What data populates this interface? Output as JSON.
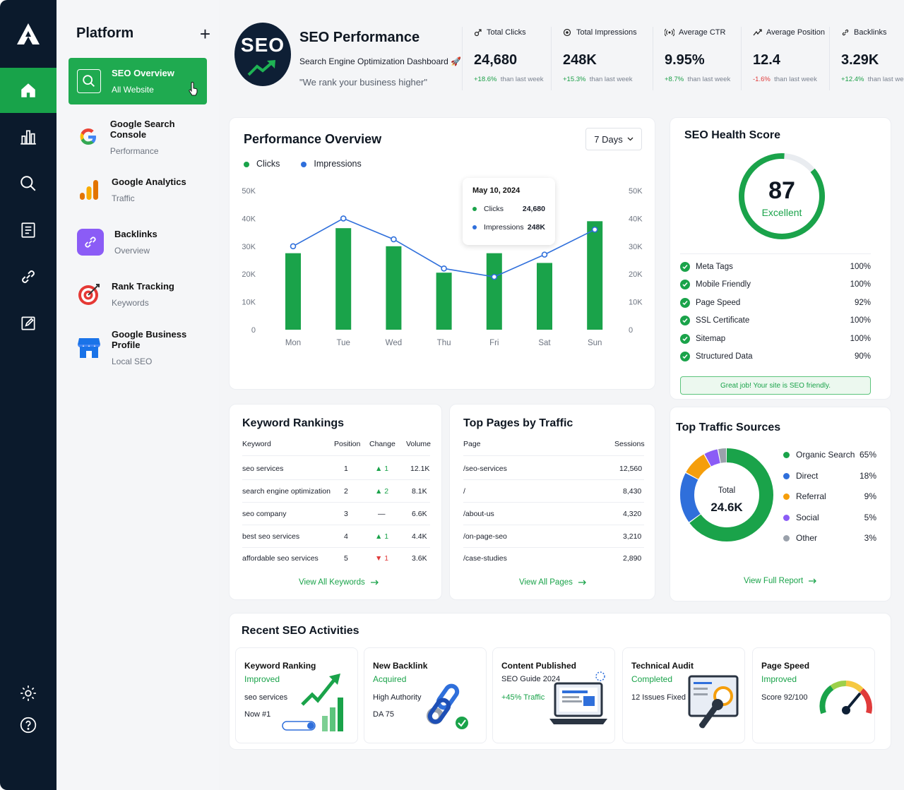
{
  "rail": {
    "items": [
      "home-icon",
      "bar-chart-icon",
      "search-icon",
      "report-icon",
      "link-icon",
      "edit-icon"
    ],
    "bottom": [
      "gear-icon",
      "help-icon"
    ],
    "accent": "#18a34a"
  },
  "sidebar": {
    "title": "Platform",
    "add_label": "+",
    "items": [
      {
        "label": "SEO Overview",
        "sub": "All Website",
        "icon": "search-icon",
        "active": true
      },
      {
        "label": "Google Search Console",
        "sub": "Performance",
        "icon": "google-icon"
      },
      {
        "label": "Google Analytics",
        "sub": "Traffic",
        "icon": "analytics-icon"
      },
      {
        "label": "Backlinks",
        "sub": "Overview",
        "icon": "link-icon"
      },
      {
        "label": "Rank Tracking",
        "sub": "Keywords",
        "icon": "target-icon"
      },
      {
        "label": "Google Business Profile",
        "sub": "Local SEO",
        "icon": "store-icon"
      }
    ]
  },
  "header": {
    "badge": "SEO",
    "title": "SEO Performance",
    "subtitle": "Search Engine Optimization Dashboard 🚀",
    "tagline": "\"We rank your business higher\"",
    "kpis": [
      {
        "label": "Total Clicks",
        "value": "24,680",
        "change": "+18.6%",
        "dir": "up",
        "suffix": "than last week",
        "icon": "cursor-icon"
      },
      {
        "label": "Total Impressions",
        "value": "248K",
        "change": "+15.3%",
        "dir": "up",
        "suffix": "than last week",
        "icon": "eye-icon"
      },
      {
        "label": "Average CTR",
        "value": "9.95%",
        "change": "+8.7%",
        "dir": "up",
        "suffix": "than last week",
        "icon": "signal-icon"
      },
      {
        "label": "Average Position",
        "value": "12.4",
        "change": "-1.6%",
        "dir": "down",
        "suffix": "than last week",
        "icon": "trend-icon"
      },
      {
        "label": "Backlinks",
        "value": "3.29K",
        "change": "+12.4%",
        "dir": "up",
        "suffix": "than last week",
        "icon": "link-icon"
      }
    ]
  },
  "performance": {
    "title": "Performance Overview",
    "range": "7 Days",
    "legend": [
      {
        "name": "Clicks",
        "color": "#1aa34a"
      },
      {
        "name": "Impressions",
        "color": "#2f6fdb"
      }
    ],
    "tooltip": {
      "date": "May 10, 2024",
      "clicks_label": "Clicks",
      "clicks_value": "24,680",
      "impressions_label": "Impressions",
      "impressions_value": "248K"
    }
  },
  "chart_data": {
    "type": "bar",
    "categories": [
      "Mon",
      "Tue",
      "Wed",
      "Thu",
      "Fri",
      "Sat",
      "Sun"
    ],
    "series": [
      {
        "name": "Clicks",
        "type": "bar",
        "values": [
          27500,
          36500,
          30000,
          20500,
          27500,
          24000,
          39000
        ],
        "color": "#1aa34a"
      },
      {
        "name": "Impressions",
        "type": "line",
        "values": [
          30000,
          40000,
          32500,
          22000,
          19000,
          27000,
          36000
        ],
        "color": "#2f6fdb"
      }
    ],
    "yticks": [
      "50K",
      "40K",
      "30K",
      "20K",
      "10K",
      "0"
    ],
    "ylim": [
      0,
      50000
    ],
    "grid": true
  },
  "health": {
    "title": "SEO Health Score",
    "score": "87",
    "score_fraction": 0.87,
    "score_label": "Excellent",
    "items": [
      {
        "name": "Meta Tags",
        "value": "100%"
      },
      {
        "name": "Mobile Friendly",
        "value": "100%"
      },
      {
        "name": "Page Speed",
        "value": "92%"
      },
      {
        "name": "SSL Certificate",
        "value": "100%"
      },
      {
        "name": "Sitemap",
        "value": "100%"
      },
      {
        "name": "Structured Data",
        "value": "90%"
      }
    ],
    "banner": "Great job! Your site is SEO friendly."
  },
  "keywords": {
    "title": "Keyword Rankings",
    "headers": [
      "Keyword",
      "Position",
      "Change",
      "Volume"
    ],
    "rows": [
      {
        "keyword": "seo services",
        "position": "1",
        "change": "▲ 1",
        "dir": "up",
        "volume": "12.1K"
      },
      {
        "keyword": "search engine optimization",
        "position": "2",
        "change": "▲ 2",
        "dir": "up",
        "volume": "8.1K"
      },
      {
        "keyword": "seo company",
        "position": "3",
        "change": "—",
        "dir": "flat",
        "volume": "6.6K"
      },
      {
        "keyword": "best seo services",
        "position": "4",
        "change": "▲ 1",
        "dir": "up",
        "volume": "4.4K"
      },
      {
        "keyword": "affordable seo services",
        "position": "5",
        "change": "▼ 1",
        "dir": "down",
        "volume": "3.6K"
      }
    ],
    "link": "View All Keywords"
  },
  "pages": {
    "title": "Top Pages by Traffic",
    "headers": [
      "Page",
      "Sessions"
    ],
    "rows": [
      {
        "page": "/seo-services",
        "sessions": "12,560"
      },
      {
        "page": "/",
        "sessions": "8,430"
      },
      {
        "page": "/about-us",
        "sessions": "4,320"
      },
      {
        "page": "/on-page-seo",
        "sessions": "3,210"
      },
      {
        "page": "/case-studies",
        "sessions": "2,890"
      }
    ],
    "link": "View All Pages"
  },
  "traffic": {
    "title": "Top Traffic Sources",
    "total_label": "Total",
    "total_value": "24.6K",
    "sources": [
      {
        "name": "Organic Search",
        "value": "65%",
        "pct": 65,
        "color": "#1aa34a"
      },
      {
        "name": "Direct",
        "value": "18%",
        "pct": 18,
        "color": "#2f6fdb"
      },
      {
        "name": "Referral",
        "value": "9%",
        "pct": 9,
        "color": "#f59e0b"
      },
      {
        "name": "Social",
        "value": "5%",
        "pct": 5,
        "color": "#8b5cf6"
      },
      {
        "name": "Other",
        "value": "3%",
        "pct": 3,
        "color": "#9aa1ab"
      }
    ],
    "link": "View Full Report"
  },
  "activities": {
    "title": "Recent SEO Activities",
    "items": [
      {
        "t1": "Keyword Ranking",
        "t2": "Improved",
        "t3": "seo services",
        "t4": "Now #1"
      },
      {
        "t1": "New Backlink",
        "t2": "Acquired",
        "t3": "High Authority",
        "t4": "DA 75"
      },
      {
        "t1": "Content Published",
        "t2": "SEO Guide 2024",
        "t3": "+45% Traffic",
        "t4": ""
      },
      {
        "t1": "Technical Audit",
        "t2": "Completed",
        "t3": "12 Issues Fixed",
        "t4": ""
      },
      {
        "t1": "Page Speed",
        "t2": "Improved",
        "t3": "Score 92/100",
        "t4": ""
      }
    ]
  }
}
